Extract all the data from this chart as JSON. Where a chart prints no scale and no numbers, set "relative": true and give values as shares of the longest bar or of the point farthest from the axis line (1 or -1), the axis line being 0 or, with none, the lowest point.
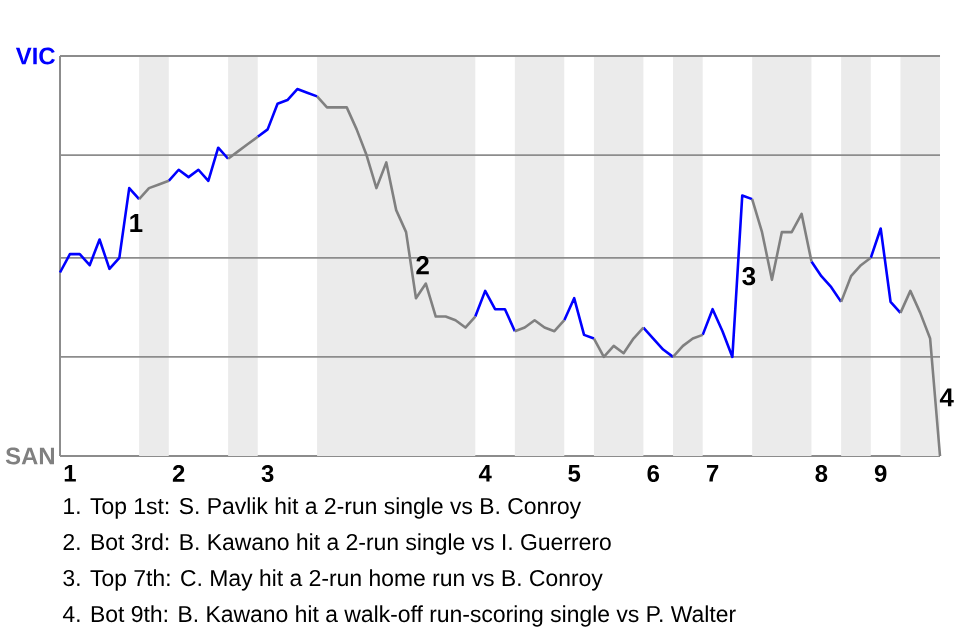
{
  "chart_data": {
    "type": "line",
    "relative": true,
    "line_style": "solid",
    "categories": [
      null,
      "1",
      null,
      null,
      null,
      null,
      null,
      null,
      null,
      null,
      null,
      null,
      "2",
      null,
      null,
      null,
      null,
      null,
      null,
      null,
      null,
      "3",
      null,
      null,
      null,
      null,
      null,
      null,
      null,
      null,
      null,
      null,
      null,
      null,
      null,
      null,
      null,
      null,
      null,
      null,
      null,
      null,
      null,
      "4",
      null,
      null,
      null,
      null,
      null,
      null,
      null,
      null,
      "5",
      null,
      null,
      null,
      null,
      null,
      null,
      null,
      "6",
      null,
      null,
      null,
      null,
      null,
      "7",
      null,
      null,
      null,
      null,
      null,
      null,
      null,
      null,
      null,
      null,
      "8",
      null,
      null,
      null,
      null,
      null,
      "9",
      null,
      null,
      null,
      null,
      null,
      null
    ],
    "series": [
      {
        "name": "VIC",
        "color": "#0000ff",
        "values": [
          0.5,
          0.55,
          0.55,
          0.52,
          0.59,
          0.51,
          0.54,
          0.73,
          0.7,
          null,
          null,
          0.75,
          0.78,
          0.76,
          0.78,
          0.75,
          0.84,
          0.81,
          null,
          null,
          0.87,
          0.89,
          0.96,
          0.97,
          1,
          0.99,
          0.98,
          null,
          null,
          null,
          null,
          null,
          null,
          null,
          null,
          null,
          null,
          null,
          null,
          null,
          null,
          null,
          0.38,
          0.45,
          0.4,
          0.4,
          0.34,
          null,
          null,
          null,
          null,
          0.37,
          0.43,
          0.33,
          0.32,
          null,
          null,
          null,
          null,
          0.35,
          0.32,
          0.29,
          0.27,
          null,
          null,
          0.33,
          0.4,
          0.34,
          0.27,
          0.71,
          0.7,
          null,
          null,
          null,
          null,
          null,
          0.53,
          0.49,
          0.46,
          0.42,
          null,
          null,
          0.54,
          0.62,
          0.42,
          0.39,
          null,
          null,
          null,
          null
        ]
      },
      {
        "name": "SAN",
        "color": "#808080",
        "values": [
          null,
          null,
          null,
          null,
          null,
          null,
          null,
          null,
          0.7,
          0.73,
          0.74,
          0.75,
          null,
          null,
          null,
          null,
          null,
          0.81,
          0.83,
          0.85,
          0.87,
          null,
          null,
          null,
          null,
          null,
          0.98,
          0.95,
          0.95,
          0.95,
          0.89,
          0.82,
          0.73,
          0.8,
          0.67,
          0.61,
          0.43,
          0.47,
          0.38,
          0.38,
          0.37,
          0.35,
          0.38,
          null,
          null,
          null,
          0.34,
          0.35,
          0.37,
          0.35,
          0.34,
          0.37,
          null,
          null,
          0.32,
          0.27,
          0.3,
          0.28,
          0.32,
          0.35,
          null,
          null,
          0.27,
          0.3,
          0.32,
          0.33,
          null,
          null,
          null,
          null,
          0.7,
          0.61,
          0.48,
          0.61,
          0.61,
          0.66,
          0.53,
          null,
          null,
          0.42,
          0.49,
          0.52,
          0.54,
          null,
          null,
          0.39,
          0.45,
          0.39,
          0.32,
          0
        ]
      }
    ],
    "ref_lines": [
      {
        "axis": "y",
        "value": 0.27,
        "color": "#8c8c8c"
      },
      {
        "axis": "y",
        "value": 0.54,
        "color": "#8c8c8c"
      },
      {
        "axis": "y",
        "value": 0.82,
        "color": "#8c8c8c"
      },
      {
        "axis": "y",
        "value": 1.09,
        "color": "#8c8c8c"
      }
    ],
    "annotations": [
      {
        "text": "1",
        "y": 0.73
      },
      {
        "text": "2",
        "y": 0.43
      },
      {
        "text": "3",
        "y": 0.71
      },
      {
        "text": "4",
        "y": 0
      },
      "1. Top 1st: S. Pavlik hit a 2-run single vs B. Conroy",
      "2. Bot 3rd: B. Kawano hit a 2-run single vs I. Guerrero",
      "3. Top 7th: C. May hit a 2-run home run vs B. Conroy",
      "4. Bot 9th: B. Kawano hit a walk-off run-scoring single vs P. Walter"
    ]
  }
}
